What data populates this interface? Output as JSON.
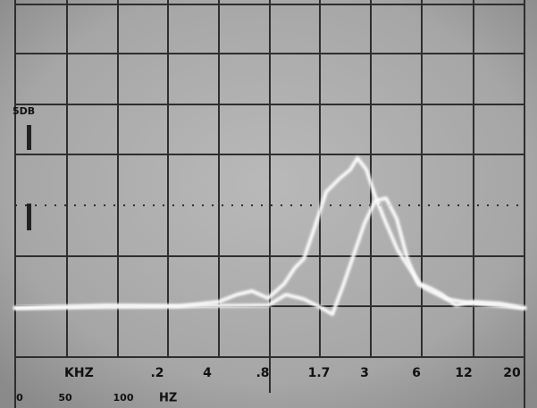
{
  "labels": {
    "scale": "5DB",
    "khz": "KHZ",
    "khz_ticks": [
      ".2",
      "4",
      ".8",
      "1.7",
      "3",
      "6",
      "12",
      "20"
    ],
    "hz_ticks": [
      "0",
      "50",
      "100"
    ],
    "hz": "HZ"
  }
}
